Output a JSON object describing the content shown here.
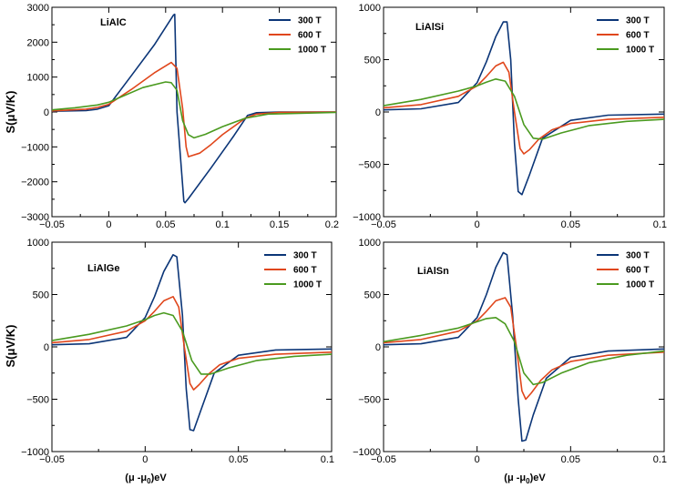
{
  "figure": {
    "ylabel": "S(μV/K)",
    "xlabel_main": "(μ -μ",
    "xlabel_sub": "0",
    "xlabel_unit": ")eV"
  },
  "chart_data": [
    {
      "type": "line",
      "title": "LiAlC",
      "xlim": [
        -0.05,
        0.2
      ],
      "ylim": [
        -3000,
        3000
      ],
      "xticks": [
        -0.05,
        0,
        0.05,
        0.1,
        0.15,
        0.2
      ],
      "xtick_labels": [
        "−0.05",
        "0",
        "0.05",
        "0.1",
        "0.15",
        "0.2"
      ],
      "yticks": [
        -3000,
        -2000,
        -1000,
        0,
        1000,
        2000,
        3000
      ],
      "ytick_labels": [
        "−3000",
        "−2000",
        "−1000",
        "0",
        "1000",
        "2000",
        "3000"
      ],
      "legend": "top-right",
      "series": [
        {
          "name": "300 T",
          "color": "#0b3577",
          "x": [
            -0.05,
            -0.02,
            -0.01,
            0,
            0.02,
            0.04,
            0.057,
            0.058,
            0.06,
            0.066,
            0.067,
            0.07,
            0.09,
            0.11,
            0.122,
            0.13,
            0.15,
            0.2
          ],
          "y": [
            20,
            40,
            80,
            180,
            1050,
            1920,
            2780,
            2800,
            0,
            -2560,
            -2600,
            -2480,
            -1600,
            -680,
            -100,
            -20,
            0,
            0
          ]
        },
        {
          "name": "600 T",
          "color": "#e0461b",
          "x": [
            -0.05,
            -0.02,
            -0.01,
            0,
            0.02,
            0.04,
            0.055,
            0.06,
            0.065,
            0.068,
            0.07,
            0.08,
            0.09,
            0.1,
            0.12,
            0.13,
            0.15,
            0.2
          ],
          "y": [
            30,
            80,
            130,
            220,
            650,
            1120,
            1420,
            1250,
            100,
            -1000,
            -1280,
            -1180,
            -930,
            -650,
            -180,
            -60,
            -10,
            0
          ]
        },
        {
          "name": "1000 T",
          "color": "#4a9a1f",
          "x": [
            -0.05,
            -0.03,
            -0.01,
            0,
            0.01,
            0.03,
            0.05,
            0.055,
            0.06,
            0.065,
            0.07,
            0.075,
            0.085,
            0.1,
            0.12,
            0.14,
            0.2
          ],
          "y": [
            60,
            120,
            200,
            280,
            420,
            700,
            860,
            840,
            620,
            -250,
            -650,
            -740,
            -640,
            -420,
            -180,
            -60,
            -10
          ]
        }
      ]
    },
    {
      "type": "line",
      "title": "LiAlSi",
      "xlim": [
        -0.05,
        0.1
      ],
      "ylim": [
        -1000,
        1000
      ],
      "xticks": [
        -0.05,
        0,
        0.05,
        0.1
      ],
      "xtick_labels": [
        "−0.05",
        "0",
        "0.05",
        "0.1"
      ],
      "yticks": [
        -1000,
        -500,
        0,
        500,
        1000
      ],
      "ytick_labels": [
        "−1000",
        "−500",
        "0",
        "500",
        "1000"
      ],
      "legend": "top-right",
      "series": [
        {
          "name": "300 T",
          "color": "#0b3577",
          "x": [
            -0.05,
            -0.03,
            -0.01,
            0,
            0.005,
            0.01,
            0.014,
            0.016,
            0.018,
            0.02,
            0.022,
            0.024,
            0.028,
            0.035,
            0.05,
            0.07,
            0.1
          ],
          "y": [
            20,
            30,
            90,
            280,
            480,
            720,
            860,
            860,
            500,
            -300,
            -760,
            -790,
            -600,
            -250,
            -80,
            -30,
            -20
          ]
        },
        {
          "name": "600 T",
          "color": "#e0461b",
          "x": [
            -0.05,
            -0.03,
            -0.01,
            0,
            0.005,
            0.01,
            0.014,
            0.017,
            0.02,
            0.023,
            0.025,
            0.028,
            0.033,
            0.04,
            0.05,
            0.07,
            0.1
          ],
          "y": [
            40,
            70,
            150,
            250,
            340,
            440,
            475,
            380,
            0,
            -350,
            -400,
            -360,
            -260,
            -170,
            -110,
            -70,
            -50
          ]
        },
        {
          "name": "1000 T",
          "color": "#4a9a1f",
          "x": [
            -0.05,
            -0.03,
            -0.01,
            0,
            0.005,
            0.01,
            0.015,
            0.02,
            0.025,
            0.03,
            0.035,
            0.045,
            0.06,
            0.08,
            0.1
          ],
          "y": [
            60,
            120,
            200,
            250,
            285,
            315,
            295,
            150,
            -120,
            -250,
            -260,
            -200,
            -130,
            -90,
            -70
          ]
        }
      ]
    },
    {
      "type": "line",
      "title": "LiAlGe",
      "xlim": [
        -0.05,
        0.1
      ],
      "ylim": [
        -1000,
        1000
      ],
      "xticks": [
        -0.05,
        0,
        0.05,
        0.1
      ],
      "xtick_labels": [
        "−0.05",
        "0",
        "0.05",
        "0.1"
      ],
      "yticks": [
        -1000,
        -500,
        0,
        500,
        1000
      ],
      "ytick_labels": [
        "−1000",
        "−500",
        "0",
        "500",
        "1000"
      ],
      "legend": "top-right",
      "series": [
        {
          "name": "300 T",
          "color": "#0b3577",
          "x": [
            -0.05,
            -0.03,
            -0.01,
            0,
            0.005,
            0.01,
            0.015,
            0.017,
            0.02,
            0.022,
            0.024,
            0.026,
            0.03,
            0.037,
            0.05,
            0.07,
            0.1
          ],
          "y": [
            20,
            30,
            90,
            280,
            480,
            720,
            880,
            860,
            300,
            -400,
            -790,
            -800,
            -600,
            -250,
            -80,
            -30,
            -20
          ]
        },
        {
          "name": "600 T",
          "color": "#e0461b",
          "x": [
            -0.05,
            -0.03,
            -0.01,
            0,
            0.005,
            0.01,
            0.015,
            0.018,
            0.021,
            0.024,
            0.026,
            0.029,
            0.034,
            0.04,
            0.05,
            0.07,
            0.1
          ],
          "y": [
            40,
            70,
            150,
            250,
            340,
            440,
            480,
            380,
            0,
            -350,
            -410,
            -360,
            -260,
            -170,
            -110,
            -70,
            -50
          ]
        },
        {
          "name": "1000 T",
          "color": "#4a9a1f",
          "x": [
            -0.05,
            -0.03,
            -0.01,
            0,
            0.005,
            0.01,
            0.015,
            0.02,
            0.025,
            0.03,
            0.035,
            0.045,
            0.06,
            0.08,
            0.1
          ],
          "y": [
            60,
            120,
            200,
            260,
            300,
            325,
            300,
            150,
            -130,
            -260,
            -260,
            -200,
            -130,
            -90,
            -70
          ]
        }
      ]
    },
    {
      "type": "line",
      "title": "LiAlSn",
      "xlim": [
        -0.05,
        0.1
      ],
      "ylim": [
        -1000,
        1000
      ],
      "xticks": [
        -0.05,
        0,
        0.05,
        0.1
      ],
      "xtick_labels": [
        "−0.05",
        "0",
        "0.05",
        "0.1"
      ],
      "yticks": [
        -1000,
        -500,
        0,
        500,
        1000
      ],
      "ytick_labels": [
        "−1000",
        "−500",
        "0",
        "500",
        "1000"
      ],
      "legend": "top-right",
      "series": [
        {
          "name": "300 T",
          "color": "#0b3577",
          "x": [
            -0.05,
            -0.03,
            -0.01,
            0,
            0.005,
            0.01,
            0.014,
            0.016,
            0.019,
            0.022,
            0.024,
            0.026,
            0.03,
            0.037,
            0.05,
            0.07,
            0.1
          ],
          "y": [
            20,
            30,
            90,
            280,
            500,
            760,
            900,
            880,
            300,
            -500,
            -900,
            -890,
            -650,
            -300,
            -100,
            -40,
            -20
          ]
        },
        {
          "name": "600 T",
          "color": "#e0461b",
          "x": [
            -0.05,
            -0.03,
            -0.01,
            0,
            0.005,
            0.01,
            0.015,
            0.018,
            0.021,
            0.024,
            0.026,
            0.029,
            0.034,
            0.04,
            0.05,
            0.07,
            0.1
          ],
          "y": [
            40,
            70,
            150,
            250,
            340,
            440,
            470,
            380,
            0,
            -420,
            -500,
            -440,
            -320,
            -220,
            -140,
            -80,
            -50
          ]
        },
        {
          "name": "1000 T",
          "color": "#4a9a1f",
          "x": [
            -0.05,
            -0.03,
            -0.01,
            0,
            0.005,
            0.01,
            0.015,
            0.02,
            0.025,
            0.03,
            0.035,
            0.045,
            0.06,
            0.08,
            0.1
          ],
          "y": [
            50,
            110,
            180,
            240,
            270,
            280,
            220,
            50,
            -250,
            -360,
            -340,
            -250,
            -150,
            -80,
            -40
          ]
        }
      ]
    }
  ]
}
